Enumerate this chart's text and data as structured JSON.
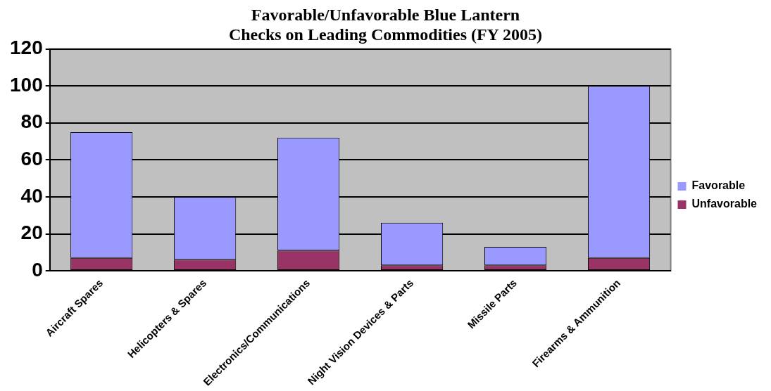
{
  "chart_data": {
    "type": "bar",
    "title": "Favorable/Unfavorable Blue Lantern Checks on Leading Commodities (FY 2005)",
    "categories": [
      "Aircraft Spares",
      "Helicopters & Spares",
      "Electronics/Communications",
      "Night Vision Devices & Parts",
      "Missile Parts",
      "Firearms & Ammunition"
    ],
    "series": [
      {
        "name": "Unfavorable",
        "color": "#993366",
        "values": [
          7,
          6,
          11,
          3,
          3,
          7
        ]
      },
      {
        "name": "Favorable",
        "color": "#9999ff",
        "values": [
          68,
          34,
          61,
          23,
          10,
          93
        ]
      }
    ],
    "stacked": true,
    "ylim": [
      0,
      120
    ],
    "yticks": [
      0,
      20,
      40,
      60,
      80,
      100,
      120
    ],
    "grid": "y",
    "legend": "right"
  }
}
